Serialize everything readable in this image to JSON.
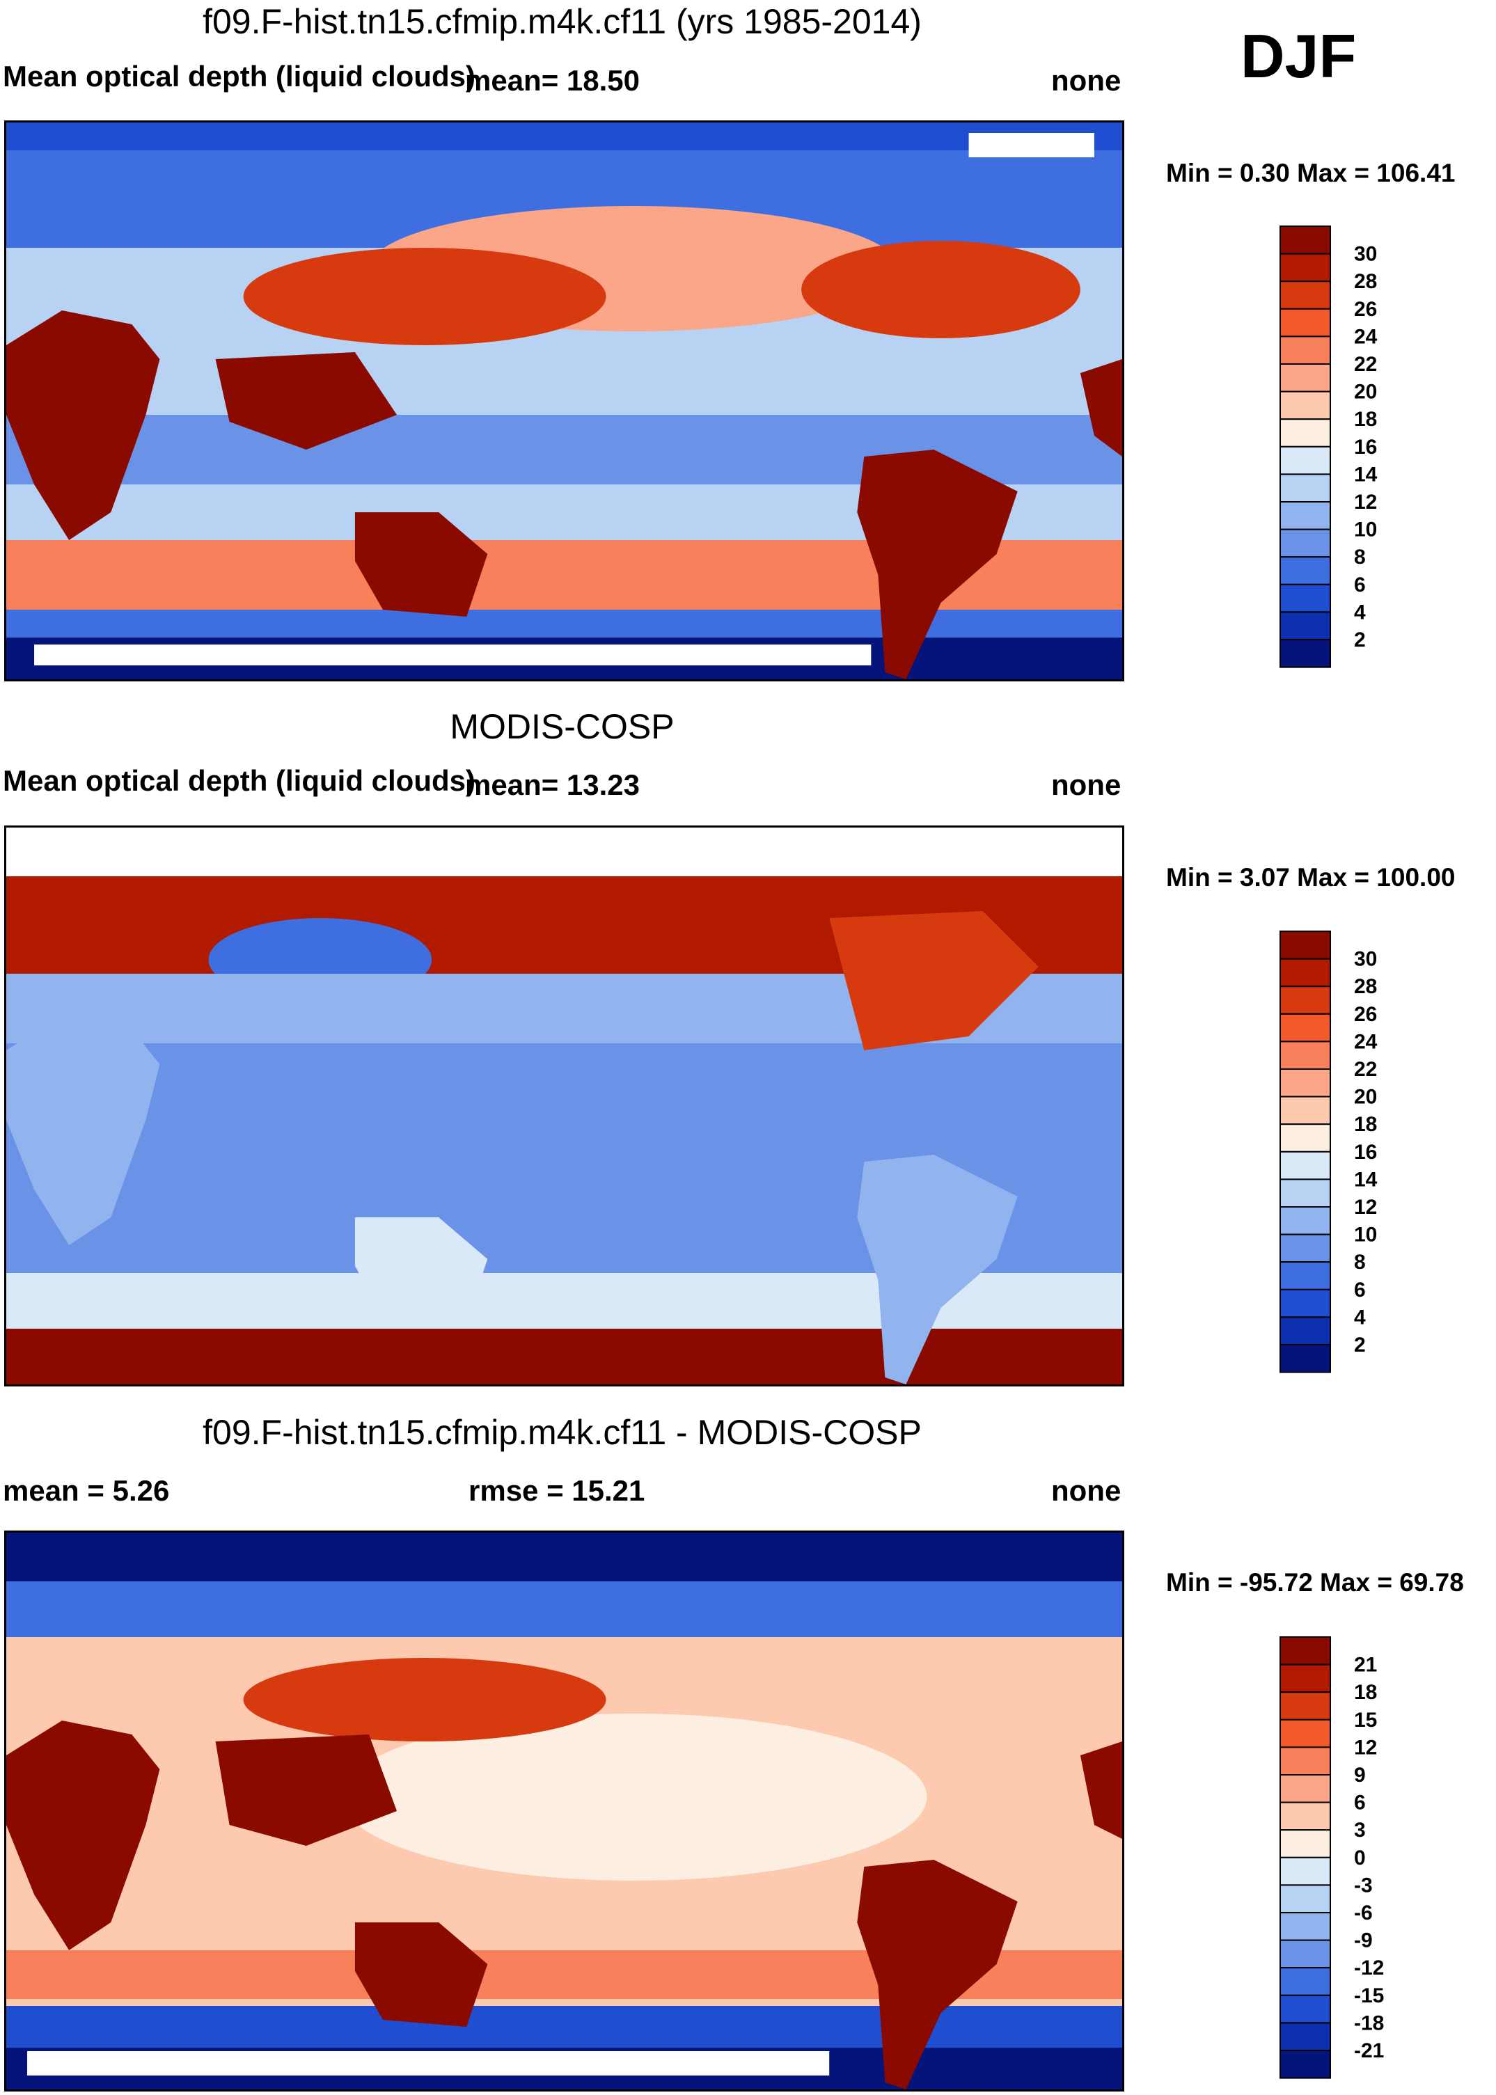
{
  "season": "DJF",
  "chart_data": [
    {
      "type": "heatmap",
      "title": "f09.F-hist.tn15.cfmip.m4k.cf11 (yrs 1985-2014)",
      "left_label": "Mean optical depth (liquid clouds)",
      "mean_text": "mean=  18.50",
      "right_label": "none",
      "minmax_text": "Min =   0.30 Max = 106.41",
      "colorbar": {
        "labels": [
          "30",
          "28",
          "26",
          "24",
          "22",
          "20",
          "18",
          "16",
          "14",
          "12",
          "10",
          "8",
          "6",
          "4",
          "2"
        ],
        "colors": [
          "#8b0a00",
          "#b21a00",
          "#d83a10",
          "#f25a2a",
          "#f8805a",
          "#fba688",
          "#fdcab0",
          "#fdeee2",
          "#dae9f8",
          "#b8d2f4",
          "#91b4ee",
          "#6a92e6",
          "#3f6ee0",
          "#1f4ed0",
          "#0c2fb0",
          "#05147a"
        ]
      },
      "fields": {
        "ocean": [
          "#b8d2f4",
          "#91b4ee",
          "#fba688"
        ],
        "land_tropic": "#8b0a00",
        "arctic": "#3f6ee0",
        "south_storm": "#f25a2a",
        "antarctic": "#0c2fb0"
      }
    },
    {
      "type": "heatmap",
      "title": "MODIS-COSP",
      "left_label": "Mean optical depth (liquid clouds)",
      "mean_text": "mean=  13.23",
      "right_label": "none",
      "minmax_text": "Min =   3.07 Max = 100.00",
      "colorbar": {
        "labels": [
          "30",
          "28",
          "26",
          "24",
          "22",
          "20",
          "18",
          "16",
          "14",
          "12",
          "10",
          "8",
          "6",
          "4",
          "2"
        ],
        "colors": [
          "#8b0a00",
          "#b21a00",
          "#d83a10",
          "#f25a2a",
          "#f8805a",
          "#fba688",
          "#fdcab0",
          "#fdeee2",
          "#dae9f8",
          "#b8d2f4",
          "#91b4ee",
          "#6a92e6",
          "#3f6ee0",
          "#1f4ed0",
          "#0c2fb0",
          "#05147a"
        ]
      }
    },
    {
      "type": "heatmap",
      "title": "f09.F-hist.tn15.cfmip.m4k.cf11 - MODIS-COSP",
      "left_label": "mean =   5.26",
      "mean_text": "rmse =  15.21",
      "right_label": "none",
      "minmax_text": "Min = -95.72 Max =  69.78",
      "colorbar": {
        "labels": [
          "21",
          "18",
          "15",
          "12",
          "9",
          "6",
          "3",
          "0",
          "-3",
          "-6",
          "-9",
          "-12",
          "-15",
          "-18",
          "-21"
        ],
        "colors": [
          "#8b0a00",
          "#b21a00",
          "#d83a10",
          "#f25a2a",
          "#f8805a",
          "#fba688",
          "#fdcab0",
          "#fdeee2",
          "#dae9f8",
          "#b8d2f4",
          "#91b4ee",
          "#6a92e6",
          "#3f6ee0",
          "#1f4ed0",
          "#0c2fb0",
          "#05147a"
        ]
      }
    }
  ]
}
